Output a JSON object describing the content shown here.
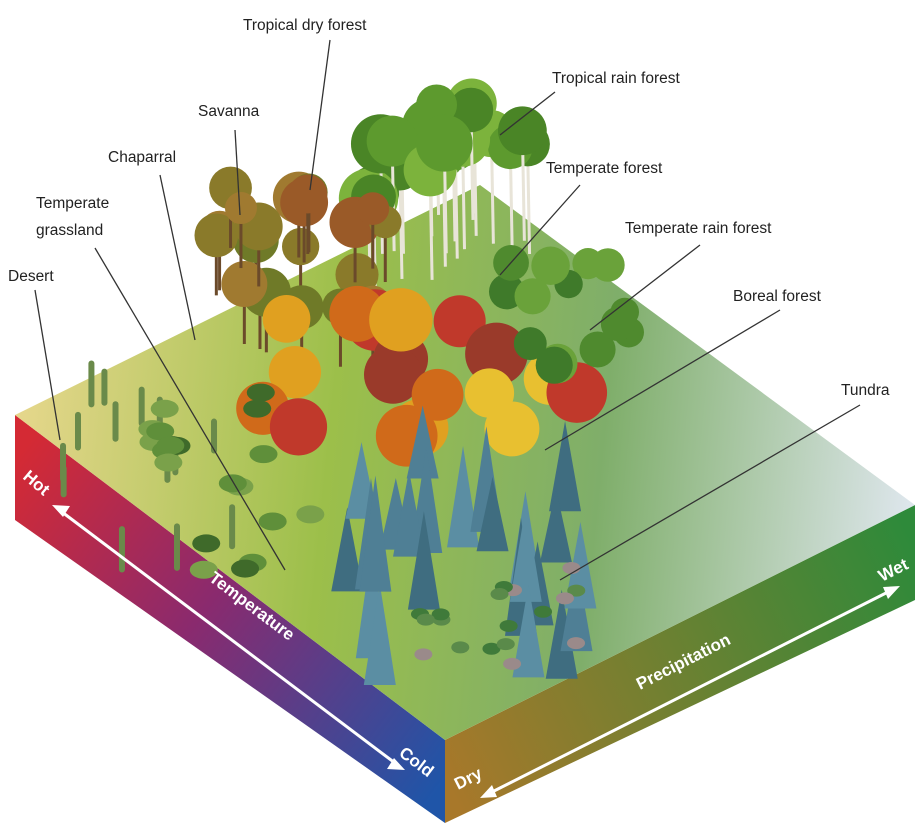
{
  "labels": [
    {
      "lines": [
        "Tropical dry forest"
      ]
    },
    {
      "lines": [
        "Tropical rain forest"
      ]
    },
    {
      "lines": [
        "Savanna"
      ]
    },
    {
      "lines": [
        "Chaparral"
      ]
    },
    {
      "lines": [
        "Temperate forest"
      ]
    },
    {
      "lines": [
        "Temperate",
        "grassland"
      ]
    },
    {
      "lines": [
        "Temperate rain forest"
      ]
    },
    {
      "lines": [
        "Desert"
      ]
    },
    {
      "lines": [
        "Boreal forest"
      ]
    },
    {
      "lines": [
        "Tundra"
      ]
    }
  ],
  "temperature_axis": {
    "hot": "Hot",
    "title": "Temperature",
    "cold": "Cold"
  },
  "precipitation_axis": {
    "dry": "Dry",
    "title": "Precipitation",
    "wet": "Wet"
  }
}
